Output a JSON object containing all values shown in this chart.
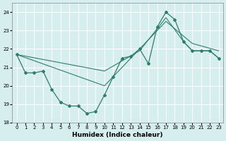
{
  "xlabel": "Humidex (Indice chaleur)",
  "bg_color": "#d6eeee",
  "grid_color": "#ffffff",
  "line_color": "#2e7d6e",
  "xlim": [
    -0.5,
    23.5
  ],
  "ylim": [
    18,
    24.5
  ],
  "yticks": [
    18,
    19,
    20,
    21,
    22,
    23,
    24
  ],
  "xticks": [
    0,
    1,
    2,
    3,
    4,
    5,
    6,
    7,
    8,
    9,
    10,
    11,
    12,
    13,
    14,
    15,
    16,
    17,
    18,
    19,
    20,
    21,
    22,
    23
  ],
  "series1_x": [
    0,
    1,
    2,
    3,
    4,
    5,
    6,
    7,
    8,
    9,
    10,
    11,
    12,
    13,
    14,
    15,
    16,
    17,
    18,
    19,
    20,
    21,
    22,
    23
  ],
  "series1_y": [
    21.7,
    20.7,
    20.7,
    20.8,
    19.8,
    19.1,
    18.9,
    18.9,
    18.5,
    18.6,
    19.5,
    20.5,
    21.5,
    21.6,
    22.0,
    21.2,
    23.2,
    24.0,
    23.6,
    22.4,
    21.9,
    21.9,
    21.9,
    21.5
  ],
  "series2_x": [
    0,
    10,
    14,
    17,
    19,
    20,
    21,
    22,
    23
  ],
  "series2_y": [
    21.7,
    20.8,
    21.9,
    23.7,
    22.4,
    21.9,
    21.9,
    21.9,
    21.5
  ],
  "series3_x": [
    0,
    10,
    17,
    20,
    23
  ],
  "series3_y": [
    21.7,
    20.0,
    23.5,
    22.3,
    21.9
  ]
}
